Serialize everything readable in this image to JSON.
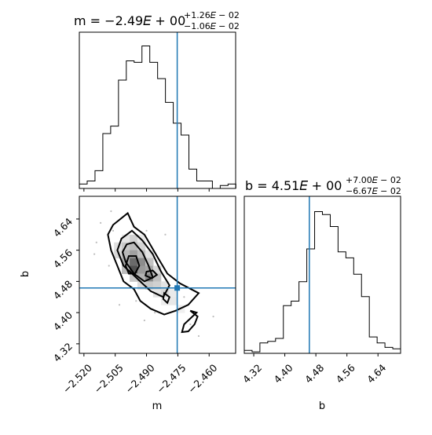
{
  "chart_data": {
    "type": "corner",
    "parameters": [
      "m",
      "b"
    ],
    "truths": {
      "m": -2.4753,
      "b": 4.4632
    },
    "panels": [
      {
        "panel": "histogram-m",
        "type": "histogram",
        "title_main": "m = −2.49𝐸 + 00",
        "title_sup": "+1.26𝐸 − 02",
        "title_sub": "−1.06𝐸 − 02",
        "xlim": [
          -2.5222,
          -2.4473
        ],
        "bin_edges": [
          -2.5222,
          -2.51844,
          -2.51469,
          -2.51094,
          -2.50719,
          -2.50344,
          -2.49969,
          -2.49594,
          -2.49219,
          -2.48844,
          -2.48469,
          -2.48094,
          -2.47719,
          -2.47344,
          -2.46969,
          -2.46594,
          -2.46219,
          -2.45844,
          -2.45469,
          -2.45094,
          -2.44719
        ],
        "counts": [
          0.03,
          0.05,
          0.12,
          0.37,
          0.42,
          0.73,
          0.86,
          0.85,
          0.96,
          0.85,
          0.74,
          0.58,
          0.44,
          0.36,
          0.13,
          0.05,
          0.05,
          0.0,
          0.02,
          0.03
        ]
      },
      {
        "panel": "scatter-b-vs-m",
        "type": "2d-histogram-contour",
        "xlabel": "m",
        "ylabel": "b",
        "xlim": [
          -2.5222,
          -2.4473
        ],
        "ylim": [
          4.2956,
          4.6982
        ],
        "xticks": [
          "−2.520",
          "−2.505",
          "−2.490",
          "−2.475",
          "−2.460"
        ],
        "yticks": [
          "4.32",
          "4.40",
          "4.48",
          "4.56",
          "4.64"
        ]
      },
      {
        "panel": "histogram-b",
        "type": "histogram",
        "title_main": "b = 4.51𝐸 + 00",
        "title_sup": "+7.00𝐸 − 02",
        "title_sub": "−6.67𝐸 − 02",
        "xlabel": "b",
        "xlim": [
          4.2956,
          4.6982
        ],
        "xticks": [
          "4.32",
          "4.40",
          "4.48",
          "4.56",
          "4.64"
        ],
        "bin_edges": [
          4.2956,
          4.31573,
          4.33586,
          4.35599,
          4.37612,
          4.39625,
          4.41638,
          4.43651,
          4.45664,
          4.47677,
          4.4969,
          4.51703,
          4.53716,
          4.55729,
          4.57742,
          4.59755,
          4.61768,
          4.63781,
          4.65794,
          4.67807,
          4.6982
        ],
        "counts": [
          0.02,
          0.01,
          0.07,
          0.08,
          0.1,
          0.32,
          0.35,
          0.48,
          0.7,
          0.95,
          0.93,
          0.85,
          0.68,
          0.64,
          0.53,
          0.38,
          0.11,
          0.07,
          0.04,
          0.03
        ]
      }
    ]
  }
}
